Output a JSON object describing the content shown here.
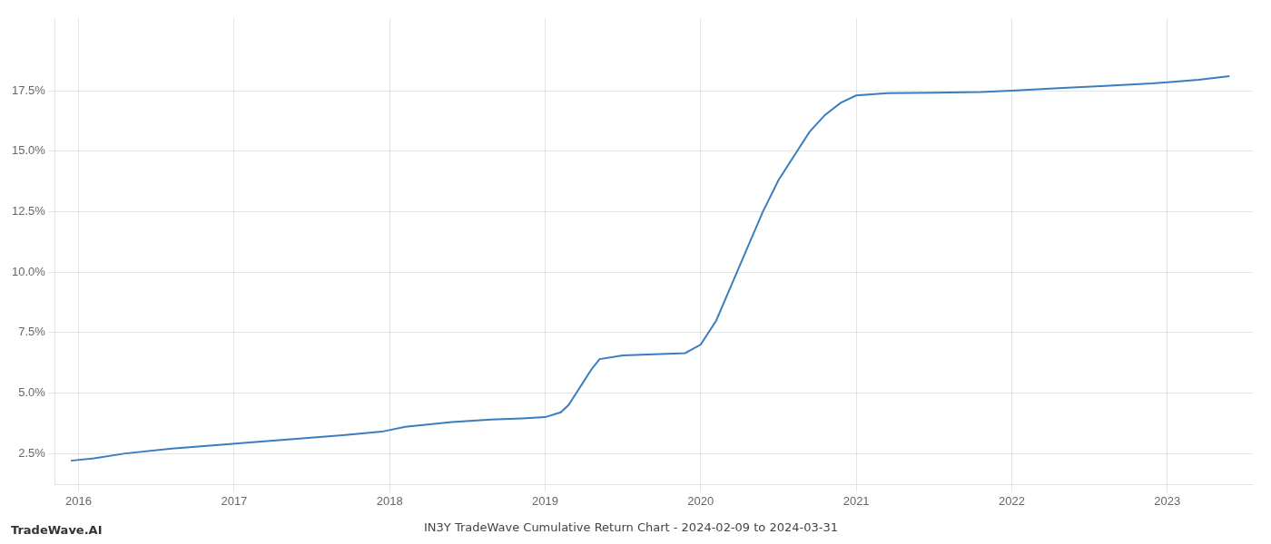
{
  "chart_data": {
    "type": "line",
    "title": "IN3Y TradeWave Cumulative Return Chart - 2024-02-09 to 2024-03-31",
    "annotations": [
      "TradeWave.AI"
    ],
    "x": [
      2015.95,
      2016.1,
      2016.3,
      2016.6,
      2016.9,
      2017.1,
      2017.4,
      2017.7,
      2017.95,
      2018.1,
      2018.4,
      2018.65,
      2018.85,
      2019.0,
      2019.1,
      2019.15,
      2019.2,
      2019.25,
      2019.3,
      2019.35,
      2019.5,
      2019.7,
      2019.9,
      2020.0,
      2020.1,
      2020.2,
      2020.3,
      2020.4,
      2020.5,
      2020.6,
      2020.7,
      2020.8,
      2020.9,
      2021.0,
      2021.2,
      2021.5,
      2021.8,
      2022.0,
      2022.3,
      2022.6,
      2022.9,
      2023.0,
      2023.2,
      2023.4
    ],
    "values": [
      2.2,
      2.3,
      2.5,
      2.7,
      2.85,
      2.95,
      3.1,
      3.25,
      3.4,
      3.6,
      3.8,
      3.9,
      3.95,
      4.0,
      4.2,
      4.5,
      5.0,
      5.5,
      6.0,
      6.4,
      6.55,
      6.6,
      6.65,
      7.0,
      8.0,
      9.5,
      11.0,
      12.5,
      13.8,
      14.8,
      15.8,
      16.5,
      17.0,
      17.3,
      17.4,
      17.42,
      17.44,
      17.5,
      17.6,
      17.7,
      17.8,
      17.85,
      17.95,
      18.1
    ],
    "color": "#3a7ebf",
    "xlim": [
      2015.85,
      2023.55
    ],
    "ylim": [
      1.2,
      20.5
    ],
    "xticks": [
      2016,
      2017,
      2018,
      2019,
      2020,
      2021,
      2022,
      2023
    ],
    "yticks": [
      {
        "value": 2.5,
        "label": "2.5%"
      },
      {
        "value": 5.0,
        "label": "5.0%"
      },
      {
        "value": 7.5,
        "label": "7.5%"
      },
      {
        "value": 10.0,
        "label": "10.0%"
      },
      {
        "value": 12.5,
        "label": "12.5%"
      },
      {
        "value": 15.0,
        "label": "15.0%"
      },
      {
        "value": 17.5,
        "label": "17.5%"
      }
    ],
    "grid": true
  }
}
